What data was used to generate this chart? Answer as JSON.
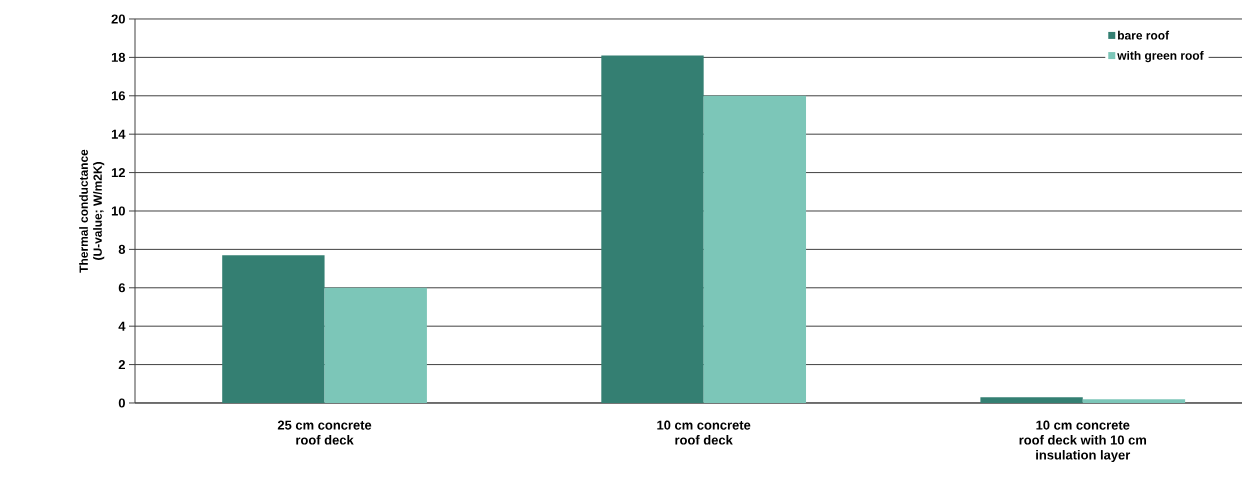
{
  "chart_data": {
    "type": "bar",
    "ylabel": "Thermal conductance\n(U-value; W/m2K)",
    "categories": [
      "25 cm concrete\nroof deck",
      "10 cm concrete\nroof deck",
      "10 cm concrete\nroof deck with 10 cm\ninsulation layer"
    ],
    "series": [
      {
        "name": "bare roof",
        "color": "#347f72",
        "values": [
          7.7,
          18.1,
          0.3
        ]
      },
      {
        "name": "with green roof",
        "color": "#7cc6b8",
        "values": [
          6.0,
          16.0,
          0.2
        ]
      }
    ],
    "ylim": [
      0,
      20
    ],
    "yticks": [
      0,
      2,
      4,
      6,
      8,
      10,
      12,
      14,
      16,
      18,
      20
    ],
    "grid": "y",
    "legend": "top right"
  }
}
